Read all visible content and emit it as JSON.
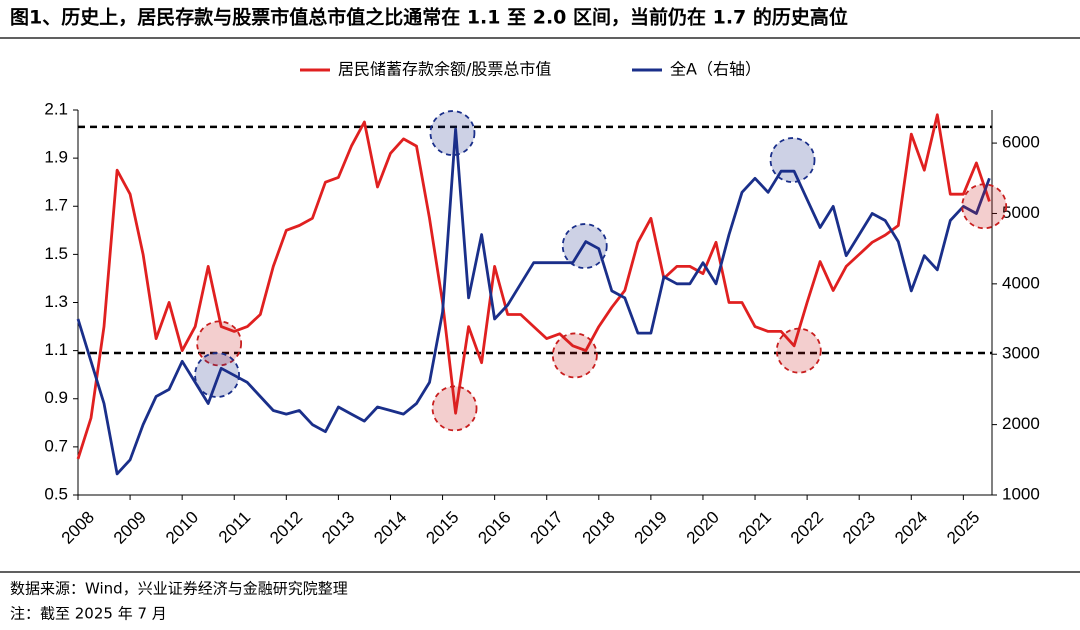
{
  "chart_data": {
    "type": "line",
    "title": "图1、历史上，居民存款与股票市值总市值之比通常在 1.1 至 2.0 区间，当前仍在 1.7 的历史高位",
    "source": "数据来源：Wind，兴业证券经济与金融研究院整理",
    "note": "注：截至 2025 年 7 月",
    "legend": "top",
    "xlim": [
      2008,
      2025.55
    ],
    "xticks": [
      2008,
      2009,
      2010,
      2011,
      2012,
      2013,
      2014,
      2015,
      2016,
      2017,
      2018,
      2019,
      2020,
      2021,
      2022,
      2023,
      2024,
      2025
    ],
    "ylim": [
      0.5,
      2.1
    ],
    "yticks": [
      0.5,
      0.7,
      0.9,
      1.1,
      1.3,
      1.5,
      1.7,
      1.9,
      2.1
    ],
    "y2lim": [
      1000,
      6470
    ],
    "y2ticks": [
      1000,
      2000,
      3000,
      4000,
      5000,
      6000
    ],
    "x": [
      2008,
      2008.25,
      2008.5,
      2008.75,
      2009,
      2009.25,
      2009.5,
      2009.75,
      2010,
      2010.25,
      2010.5,
      2010.75,
      2011,
      2011.25,
      2011.5,
      2011.75,
      2012,
      2012.25,
      2012.5,
      2012.75,
      2013,
      2013.25,
      2013.5,
      2013.75,
      2014,
      2014.25,
      2014.5,
      2014.75,
      2015,
      2015.25,
      2015.5,
      2015.75,
      2016,
      2016.25,
      2016.5,
      2016.75,
      2017,
      2017.25,
      2017.5,
      2017.75,
      2018,
      2018.25,
      2018.5,
      2018.75,
      2019,
      2019.25,
      2019.5,
      2019.75,
      2020,
      2020.25,
      2020.5,
      2020.75,
      2021,
      2021.25,
      2021.5,
      2021.75,
      2022,
      2022.25,
      2022.5,
      2022.75,
      2023,
      2023.25,
      2023.5,
      2023.75,
      2024,
      2024.25,
      2024.5,
      2024.75,
      2025,
      2025.25,
      2025.5
    ],
    "series": [
      {
        "name": "居民储蓄存款余额/股票总市值",
        "color": "#e02020",
        "axis": "y",
        "values": [
          0.65,
          0.82,
          1.2,
          1.85,
          1.75,
          1.5,
          1.15,
          1.3,
          1.1,
          1.2,
          1.45,
          1.2,
          1.18,
          1.2,
          1.25,
          1.45,
          1.6,
          1.62,
          1.65,
          1.8,
          1.82,
          1.95,
          2.05,
          1.78,
          1.92,
          1.98,
          1.95,
          1.65,
          1.3,
          0.84,
          1.2,
          1.05,
          1.45,
          1.25,
          1.25,
          1.2,
          1.15,
          1.17,
          1.12,
          1.1,
          1.2,
          1.28,
          1.35,
          1.55,
          1.65,
          1.4,
          1.45,
          1.45,
          1.42,
          1.55,
          1.3,
          1.3,
          1.2,
          1.18,
          1.18,
          1.12,
          1.3,
          1.47,
          1.35,
          1.45,
          1.5,
          1.55,
          1.58,
          1.62,
          2.0,
          1.85,
          2.08,
          1.75,
          1.75,
          1.88,
          1.72
        ]
      },
      {
        "name": "全A（右轴）",
        "color": "#1a2f8a",
        "axis": "y2",
        "values": [
          3500,
          2900,
          2300,
          1300,
          1500,
          2000,
          2400,
          2500,
          2900,
          2600,
          2300,
          2800,
          2700,
          2600,
          2400,
          2200,
          2150,
          2200,
          2000,
          1900,
          2250,
          2150,
          2050,
          2250,
          2200,
          2150,
          2300,
          2600,
          3600,
          6200,
          3800,
          4700,
          3500,
          3700,
          4000,
          4300,
          4300,
          4300,
          4300,
          4600,
          4500,
          3900,
          3800,
          3300,
          3300,
          4100,
          4000,
          4000,
          4300,
          4000,
          4700,
          5300,
          5500,
          5300,
          5600,
          5600,
          5200,
          4800,
          5100,
          4400,
          4700,
          5000,
          4900,
          4600,
          3900,
          4400,
          4200,
          4900,
          5100,
          5000,
          5500
        ]
      }
    ],
    "reference_lines": [
      2.03,
      1.09
    ],
    "highlights": [
      {
        "x": 2010.71,
        "y": 1.13,
        "axis": "y",
        "color": "#c81e1e"
      },
      {
        "x": 2010.67,
        "y": 2705,
        "axis": "y2",
        "color": "#1a2f8a"
      },
      {
        "x": 2015.19,
        "y": 6142,
        "axis": "y2",
        "color": "#1a2f8a"
      },
      {
        "x": 2015.23,
        "y": 0.86,
        "axis": "y",
        "color": "#c81e1e"
      },
      {
        "x": 2017.73,
        "y": 4537,
        "axis": "y2",
        "color": "#1a2f8a"
      },
      {
        "x": 2017.54,
        "y": 1.08,
        "axis": "y",
        "color": "#c81e1e"
      },
      {
        "x": 2021.72,
        "y": 5759,
        "axis": "y2",
        "color": "#1a2f8a"
      },
      {
        "x": 2021.84,
        "y": 1.1,
        "axis": "y",
        "color": "#c81e1e"
      },
      {
        "x": 2025.4,
        "y": 1.7,
        "axis": "y",
        "color": "#c81e1e"
      }
    ]
  }
}
